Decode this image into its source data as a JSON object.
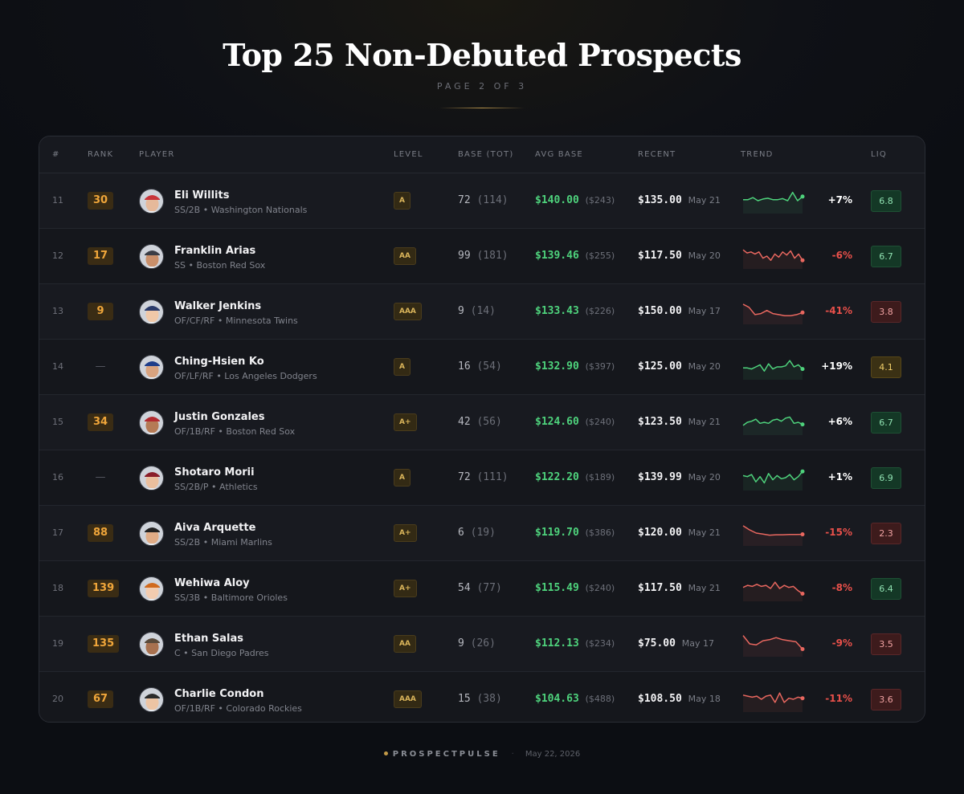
{
  "header": {
    "title": "Top 25 Non-Debuted Prospects",
    "subtitle": "PAGE 2 OF 3"
  },
  "columns": {
    "num": "#",
    "rank": "RANK",
    "player": "PLAYER",
    "level": "LEVEL",
    "base": "BASE (TOT)",
    "avg_base": "AVG BASE",
    "recent": "RECENT",
    "trend": "TREND",
    "liq": "LIQ"
  },
  "colors": {
    "positive": "#4ed27c",
    "negative": "#e8675f"
  },
  "rows": [
    {
      "num": "11",
      "rank": "30",
      "name": "Eli Willits",
      "meta": "SS/2B • Washington Nationals",
      "level": "A",
      "base": "72",
      "base_tot": "(114)",
      "avg": "$140.00",
      "avg_paren": "($243)",
      "recent": "$135.00",
      "recent_date": "May 21",
      "pct": "+7%",
      "direction": "up",
      "liq": "6.8",
      "liq_level": "good",
      "spark": [
        0.45,
        0.45,
        0.35,
        0.5,
        0.42,
        0.38,
        0.45,
        0.45,
        0.4,
        0.5,
        0.1,
        0.5,
        0.3
      ]
    },
    {
      "num": "12",
      "rank": "17",
      "name": "Franklin Arias",
      "meta": "SS • Boston Red Sox",
      "level": "AA",
      "base": "99",
      "base_tot": "(181)",
      "avg": "$139.46",
      "avg_paren": "($255)",
      "recent": "$117.50",
      "recent_date": "May 20",
      "pct": "-6%",
      "direction": "down",
      "liq": "6.7",
      "liq_level": "good",
      "spark": [
        0.2,
        0.35,
        0.3,
        0.4,
        0.3,
        0.6,
        0.5,
        0.7,
        0.4,
        0.55,
        0.3,
        0.45,
        0.25,
        0.6,
        0.4,
        0.7
      ]
    },
    {
      "num": "13",
      "rank": "9",
      "name": "Walker Jenkins",
      "meta": "OF/CF/RF • Minnesota Twins",
      "level": "AAA",
      "base": "9",
      "base_tot": "(14)",
      "avg": "$133.43",
      "avg_paren": "($226)",
      "recent": "$150.00",
      "recent_date": "May 17",
      "pct": "-41%",
      "direction": "down",
      "liq": "3.8",
      "liq_level": "bad",
      "spark": [
        0.15,
        0.3,
        0.65,
        0.6,
        0.45,
        0.6,
        0.65,
        0.7,
        0.7,
        0.65,
        0.55
      ]
    },
    {
      "num": "14",
      "rank": "",
      "name": "Ching-Hsien Ko",
      "meta": "OF/LF/RF • Los Angeles Dodgers",
      "level": "A",
      "base": "16",
      "base_tot": "(54)",
      "avg": "$132.90",
      "avg_paren": "($397)",
      "recent": "$125.00",
      "recent_date": "May 20",
      "pct": "+19%",
      "direction": "up",
      "liq": "4.1",
      "liq_level": "mid",
      "spark": [
        0.55,
        0.55,
        0.6,
        0.5,
        0.4,
        0.7,
        0.35,
        0.6,
        0.5,
        0.5,
        0.45,
        0.2,
        0.5,
        0.4,
        0.6
      ]
    },
    {
      "num": "15",
      "rank": "34",
      "name": "Justin Gonzales",
      "meta": "OF/1B/RF • Boston Red Sox",
      "level": "A+",
      "base": "42",
      "base_tot": "(56)",
      "avg": "$124.60",
      "avg_paren": "($240)",
      "recent": "$123.50",
      "recent_date": "May 21",
      "pct": "+6%",
      "direction": "up",
      "liq": "6.7",
      "liq_level": "good",
      "spark": [
        0.65,
        0.5,
        0.45,
        0.35,
        0.55,
        0.5,
        0.55,
        0.4,
        0.35,
        0.45,
        0.3,
        0.25,
        0.55,
        0.5,
        0.6
      ]
    },
    {
      "num": "16",
      "rank": "",
      "name": "Shotaro Morii",
      "meta": "SS/2B/P • Athletics",
      "level": "A",
      "base": "72",
      "base_tot": "(111)",
      "avg": "$122.20",
      "avg_paren": "($189)",
      "recent": "$139.99",
      "recent_date": "May 20",
      "pct": "+1%",
      "direction": "up",
      "liq": "6.9",
      "liq_level": "good",
      "spark": [
        0.4,
        0.45,
        0.35,
        0.7,
        0.45,
        0.75,
        0.3,
        0.6,
        0.4,
        0.55,
        0.5,
        0.35,
        0.6,
        0.45,
        0.2
      ]
    },
    {
      "num": "17",
      "rank": "88",
      "name": "Aiva Arquette",
      "meta": "SS/2B • Miami Marlins",
      "level": "A+",
      "base": "6",
      "base_tot": "(19)",
      "avg": "$119.70",
      "avg_paren": "($386)",
      "recent": "$120.00",
      "recent_date": "May 21",
      "pct": "-15%",
      "direction": "down",
      "liq": "2.3",
      "liq_level": "bad",
      "spark": [
        0.15,
        0.35,
        0.5,
        0.55,
        0.6,
        0.58,
        0.58,
        0.57,
        0.57,
        0.56
      ]
    },
    {
      "num": "18",
      "rank": "139",
      "name": "Wehiwa Aloy",
      "meta": "SS/3B • Baltimore Orioles",
      "level": "A+",
      "base": "54",
      "base_tot": "(77)",
      "avg": "$115.49",
      "avg_paren": "($240)",
      "recent": "$117.50",
      "recent_date": "May 21",
      "pct": "-8%",
      "direction": "down",
      "liq": "6.4",
      "liq_level": "good",
      "spark": [
        0.45,
        0.35,
        0.4,
        0.3,
        0.4,
        0.35,
        0.5,
        0.2,
        0.5,
        0.35,
        0.45,
        0.4,
        0.6,
        0.75
      ]
    },
    {
      "num": "19",
      "rank": "135",
      "name": "Ethan Salas",
      "meta": "C • San Diego Padres",
      "level": "AA",
      "base": "9",
      "base_tot": "(26)",
      "avg": "$112.13",
      "avg_paren": "($234)",
      "recent": "$75.00",
      "recent_date": "May 17",
      "pct": "-9%",
      "direction": "down",
      "liq": "3.5",
      "liq_level": "bad",
      "spark": [
        0.1,
        0.5,
        0.55,
        0.35,
        0.3,
        0.2,
        0.3,
        0.35,
        0.4,
        0.75
      ]
    },
    {
      "num": "20",
      "rank": "67",
      "name": "Charlie Condon",
      "meta": "OF/1B/RF • Colorado Rockies",
      "level": "AAA",
      "base": "15",
      "base_tot": "(38)",
      "avg": "$104.63",
      "avg_paren": "($488)",
      "recent": "$108.50",
      "recent_date": "May 18",
      "pct": "-11%",
      "direction": "down",
      "liq": "3.6",
      "liq_level": "bad",
      "spark": [
        0.3,
        0.35,
        0.4,
        0.35,
        0.5,
        0.35,
        0.3,
        0.65,
        0.2,
        0.65,
        0.45,
        0.5,
        0.4,
        0.45
      ]
    }
  ],
  "footer": {
    "brand": "PROSPECTPULSE",
    "date": "May 22, 2026"
  }
}
